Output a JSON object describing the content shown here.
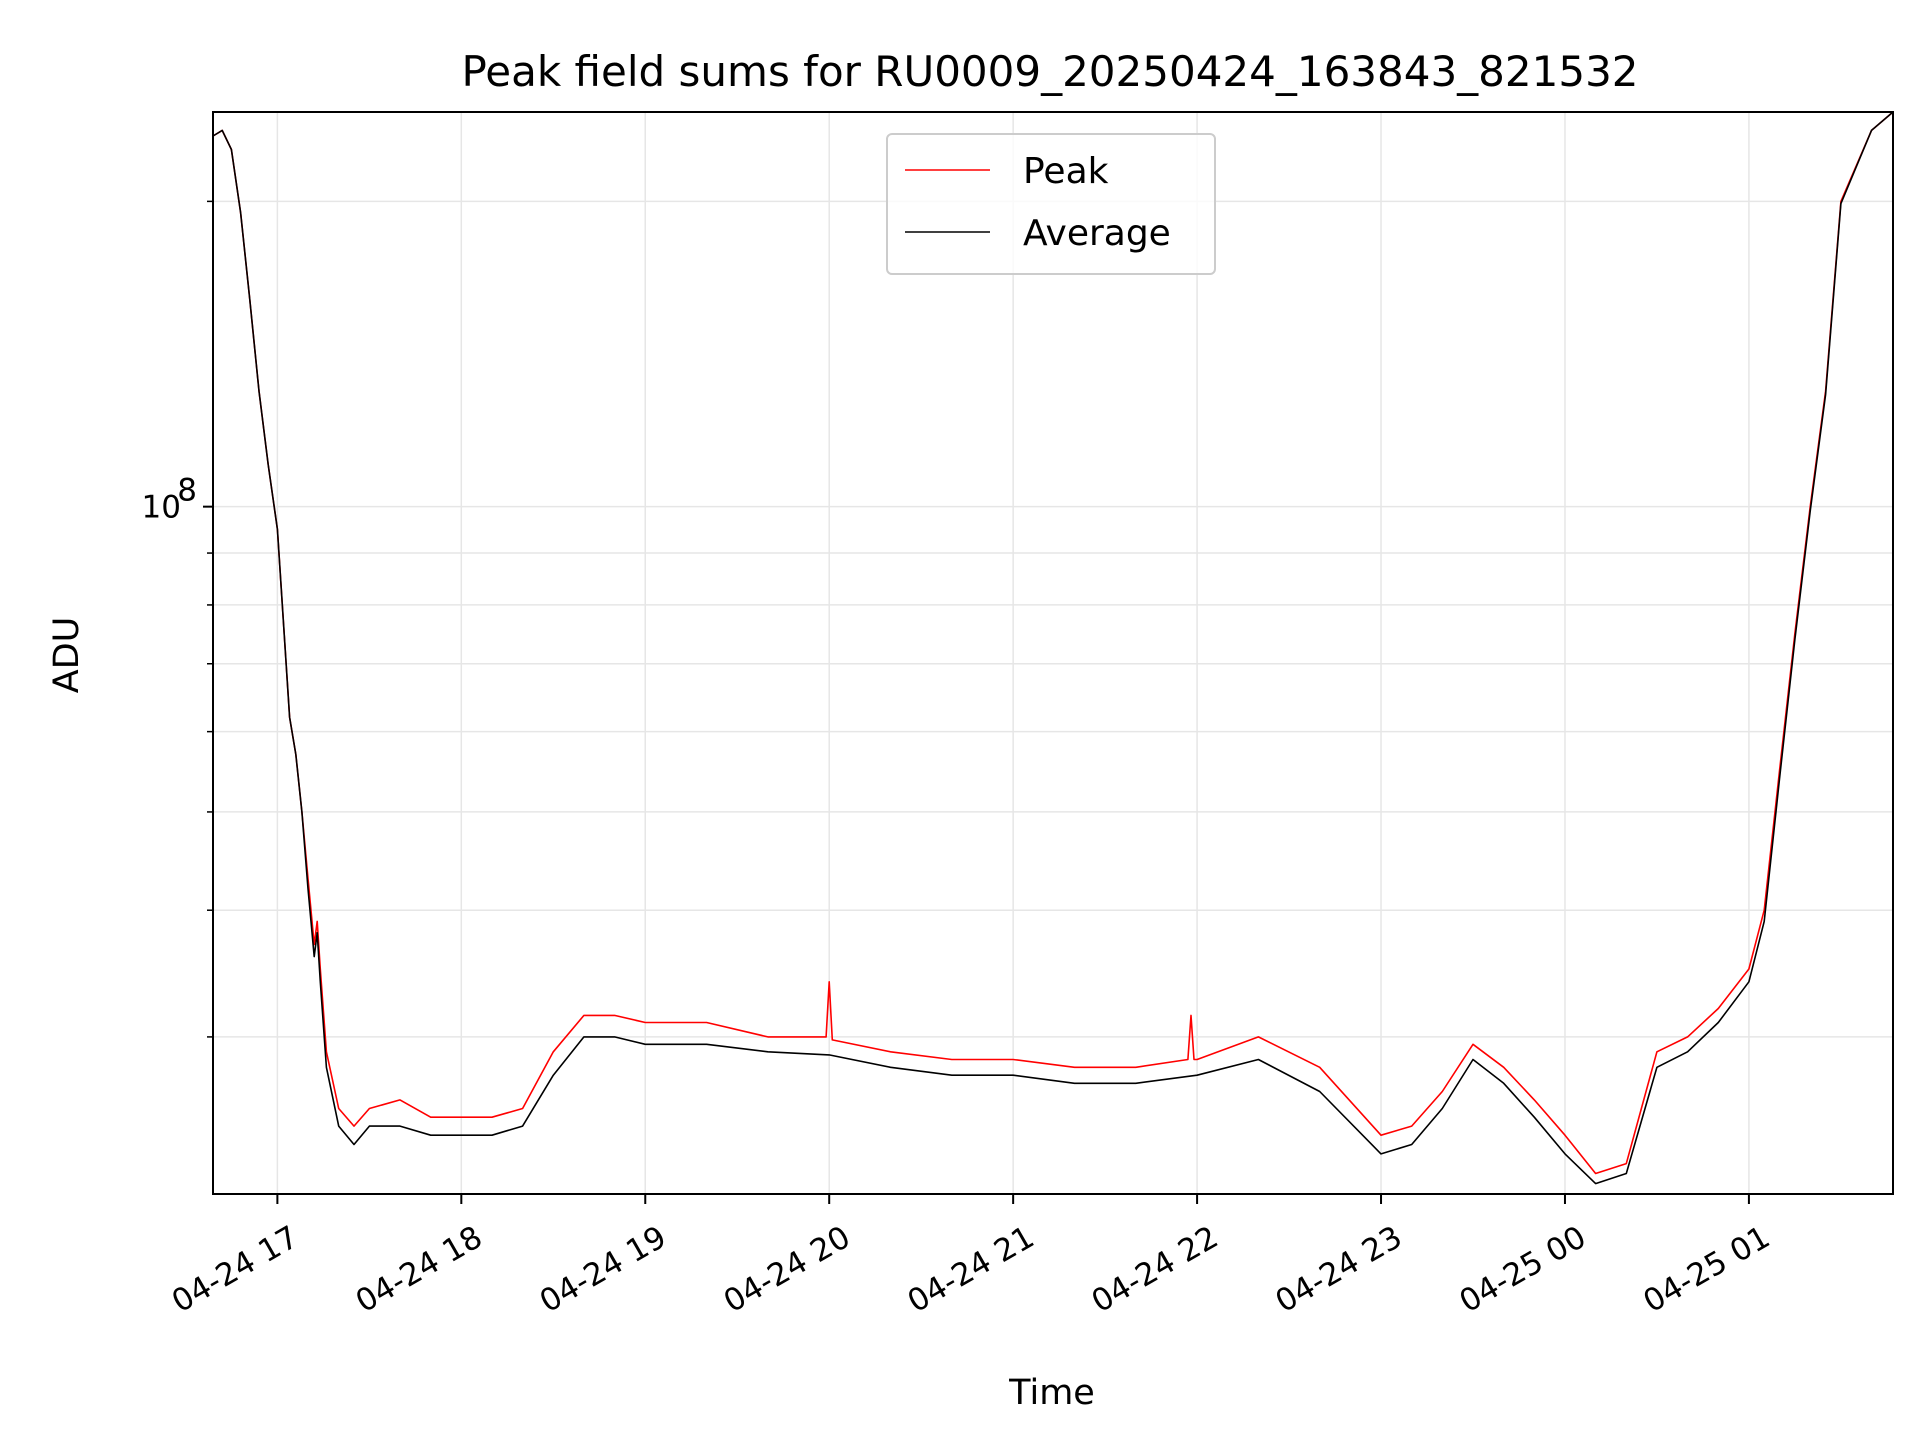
{
  "chart_data": {
    "type": "line",
    "title": "Peak field sums for RU0009_20250424_163843_821532",
    "xlabel": "Time",
    "ylabel": "ADU",
    "y_scale": "log",
    "grid": true,
    "legend_position": "top-center",
    "x_range": [
      "04-24 16:39",
      "04-25 01:47"
    ],
    "ylim": [
      21000000,
      245000000
    ],
    "x_ticks": [
      "04-24 17",
      "04-24 18",
      "04-24 19",
      "04-24 20",
      "04-24 21",
      "04-24 22",
      "04-24 23",
      "04-25 00",
      "04-25 01"
    ],
    "y_ticks": [
      {
        "label": "10",
        "exponent": "8",
        "value": 100000000
      }
    ],
    "y_minor_ticks": [
      30000000,
      40000000,
      50000000,
      60000000,
      70000000,
      80000000,
      90000000,
      200000000
    ],
    "x_tick_rotation_deg": 30,
    "colors": {
      "peak": "#ff0000",
      "average": "#000000",
      "grid": "#e6e6e6"
    },
    "series": [
      {
        "name": "Peak",
        "color": "#ff0000",
        "x": [
          "04-24 16:39",
          "04-24 16:42",
          "04-24 16:45",
          "04-24 16:48",
          "04-24 16:51",
          "04-24 16:54",
          "04-24 16:57",
          "04-24 17:00",
          "04-24 17:04",
          "04-24 17:06",
          "04-24 17:08",
          "04-24 17:10",
          "04-24 17:12",
          "04-24 17:13",
          "04-24 17:14",
          "04-24 17:16",
          "04-24 17:20",
          "04-24 17:25",
          "04-24 17:30",
          "04-24 17:40",
          "04-24 17:50",
          "04-24 18:00",
          "04-24 18:10",
          "04-24 18:20",
          "04-24 18:30",
          "04-24 18:40",
          "04-24 18:50",
          "04-24 19:00",
          "04-24 19:20",
          "04-24 19:40",
          "04-24 19:59",
          "04-24 20:00",
          "04-24 20:01",
          "04-24 20:20",
          "04-24 20:40",
          "04-24 21:00",
          "04-24 21:20",
          "04-24 21:40",
          "04-24 21:57",
          "04-24 21:58",
          "04-24 21:59",
          "04-24 22:00",
          "04-24 22:20",
          "04-24 22:40",
          "04-24 23:00",
          "04-24 23:10",
          "04-24 23:20",
          "04-24 23:30",
          "04-24 23:40",
          "04-24 23:50",
          "04-25 00:00",
          "04-25 00:10",
          "04-25 00:20",
          "04-25 00:30",
          "04-25 00:40",
          "04-25 00:50",
          "04-25 01:00",
          "04-25 01:05",
          "04-25 01:10",
          "04-25 01:15",
          "04-25 01:20",
          "04-25 01:25",
          "04-25 01:30",
          "04-25 01:40",
          "04-25 01:47"
        ],
        "y": [
          232000000,
          235000000,
          225000000,
          195000000,
          160000000,
          130000000,
          110000000,
          95000000,
          62000000,
          57000000,
          50000000,
          43000000,
          37000000,
          39000000,
          35000000,
          29000000,
          25500000,
          24500000,
          25500000,
          26000000,
          25000000,
          25000000,
          25000000,
          25500000,
          29000000,
          31500000,
          31500000,
          31000000,
          31000000,
          30000000,
          30000000,
          34000000,
          29800000,
          29000000,
          28500000,
          28500000,
          28000000,
          28000000,
          28500000,
          31500000,
          28500000,
          28500000,
          30000000,
          28000000,
          24000000,
          24500000,
          26500000,
          29500000,
          28000000,
          26000000,
          24000000,
          22000000,
          22500000,
          29000000,
          30000000,
          32000000,
          35000000,
          40000000,
          55000000,
          75000000,
          100000000,
          130000000,
          200000000,
          235000000,
          245000000
        ]
      },
      {
        "name": "Average",
        "color": "#000000",
        "x": [
          "04-24 16:39",
          "04-24 16:42",
          "04-24 16:45",
          "04-24 16:48",
          "04-24 16:51",
          "04-24 16:54",
          "04-24 16:57",
          "04-24 17:00",
          "04-24 17:04",
          "04-24 17:06",
          "04-24 17:08",
          "04-24 17:10",
          "04-24 17:12",
          "04-24 17:13",
          "04-24 17:14",
          "04-24 17:16",
          "04-24 17:20",
          "04-24 17:25",
          "04-24 17:30",
          "04-24 17:40",
          "04-24 17:50",
          "04-24 18:00",
          "04-24 18:10",
          "04-24 18:20",
          "04-24 18:30",
          "04-24 18:40",
          "04-24 18:50",
          "04-24 19:00",
          "04-24 19:20",
          "04-24 19:40",
          "04-24 20:00",
          "04-24 20:20",
          "04-24 20:40",
          "04-24 21:00",
          "04-24 21:20",
          "04-24 21:40",
          "04-24 22:00",
          "04-24 22:20",
          "04-24 22:40",
          "04-24 23:00",
          "04-24 23:10",
          "04-24 23:20",
          "04-24 23:30",
          "04-24 23:40",
          "04-24 23:50",
          "04-25 00:00",
          "04-25 00:10",
          "04-25 00:20",
          "04-25 00:30",
          "04-25 00:40",
          "04-25 00:50",
          "04-25 01:00",
          "04-25 01:05",
          "04-25 01:10",
          "04-25 01:15",
          "04-25 01:20",
          "04-25 01:25",
          "04-25 01:30",
          "04-25 01:40",
          "04-25 01:47"
        ],
        "y": [
          232000000,
          235000000,
          225000000,
          195000000,
          160000000,
          130000000,
          110000000,
          95000000,
          62000000,
          57000000,
          50000000,
          42000000,
          36000000,
          38000000,
          34000000,
          28000000,
          24500000,
          23500000,
          24500000,
          24500000,
          24000000,
          24000000,
          24000000,
          24500000,
          27500000,
          30000000,
          30000000,
          29500000,
          29500000,
          29000000,
          28800000,
          28000000,
          27500000,
          27500000,
          27000000,
          27000000,
          27500000,
          28500000,
          26500000,
          23000000,
          23500000,
          25500000,
          28500000,
          27000000,
          25000000,
          23000000,
          21500000,
          22000000,
          28000000,
          29000000,
          31000000,
          34000000,
          39000000,
          54000000,
          74000000,
          99000000,
          129000000,
          199000000,
          235000000,
          245000000
        ]
      }
    ]
  }
}
